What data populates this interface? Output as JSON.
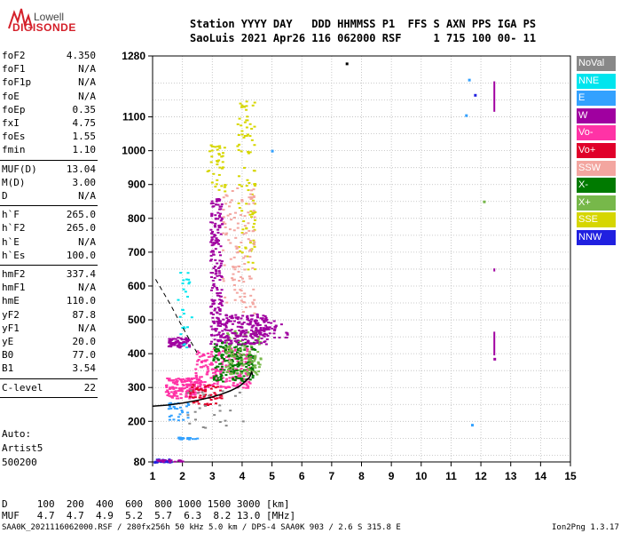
{
  "logo": {
    "line1": "Lowell",
    "line2": "DIGISONDE"
  },
  "header": {
    "line1": "Station YYYY DAY   DDD HHMMSS P1  FFS S AXN PPS IGA PS",
    "line2": "SaoLuis 2021 Apr26 116 062000 RSF     1 715 100 00- 11"
  },
  "params_group1": [
    {
      "name": "foF2",
      "value": "4.350"
    },
    {
      "name": "foF1",
      "value": "N/A"
    },
    {
      "name": "foF1p",
      "value": "N/A"
    },
    {
      "name": "foE",
      "value": "N/A"
    },
    {
      "name": "foEp",
      "value": "0.35"
    },
    {
      "name": "fxI",
      "value": "4.75"
    },
    {
      "name": "foEs",
      "value": "1.55"
    },
    {
      "name": "fmin",
      "value": "1.10"
    }
  ],
  "params_group2": [
    {
      "name": "MUF(D)",
      "value": "13.04"
    },
    {
      "name": "M(D)",
      "value": "3.00"
    },
    {
      "name": "D",
      "value": "N/A"
    }
  ],
  "params_group3": [
    {
      "name": "h`F",
      "value": "265.0"
    },
    {
      "name": "h`F2",
      "value": "265.0"
    },
    {
      "name": "h`E",
      "value": "N/A"
    },
    {
      "name": "h`Es",
      "value": "100.0"
    }
  ],
  "params_group4": [
    {
      "name": "hmF2",
      "value": "337.4"
    },
    {
      "name": "hmF1",
      "value": "N/A"
    },
    {
      "name": "hmE",
      "value": "110.0"
    },
    {
      "name": "yF2",
      "value": "87.8"
    },
    {
      "name": "yF1",
      "value": "N/A"
    },
    {
      "name": "yE",
      "value": "20.0"
    },
    {
      "name": "B0",
      "value": "77.0"
    },
    {
      "name": "B1",
      "value": "3.54"
    }
  ],
  "clevel": {
    "name": "C-level",
    "value": "22"
  },
  "autoscale": {
    "line1": "Auto:",
    "line2": "Artist5",
    "line3": "500200"
  },
  "legend": [
    {
      "label": "NoVal",
      "color": "#888888"
    },
    {
      "label": "NNE",
      "color": "#00e5ee"
    },
    {
      "label": "E",
      "color": "#33a1ff"
    },
    {
      "label": "W",
      "color": "#a000a0"
    },
    {
      "label": "Vo-",
      "color": "#ff33a6"
    },
    {
      "label": "Vo+",
      "color": "#e0002a"
    },
    {
      "label": "SSW",
      "color": "#f3a6a0"
    },
    {
      "label": "X-",
      "color": "#007a00"
    },
    {
      "label": "X+",
      "color": "#77b84a"
    },
    {
      "label": "SSE",
      "color": "#d6d600"
    },
    {
      "label": "NNW",
      "color": "#2020e0"
    }
  ],
  "bottom": {
    "line1": "D     100  200  400  600  800 1000 1500 3000 [km]",
    "line2": "MUF   4.7  4.7  4.9  5.2  5.7  6.3  8.2 13.0 [MHz]"
  },
  "footer": {
    "left": "SAA0K_2021116062000.RSF / 280fx256h 50 kHz 5.0 km / DPS-4 SAA0K 903 / 2.6 S 315.8 E",
    "right": "Ion2Png 1.3.17"
  },
  "chart_data": {
    "type": "scatter",
    "title": "",
    "xlabel": "",
    "ylabel": "",
    "xlim": [
      1,
      15
    ],
    "ylim": [
      80,
      1280
    ],
    "x_ticks": [
      1,
      2,
      3,
      4,
      5,
      6,
      7,
      8,
      9,
      10,
      11,
      12,
      13,
      14,
      15
    ],
    "y_ticks": [
      80,
      200,
      300,
      400,
      500,
      600,
      700,
      800,
      900,
      1000,
      1100,
      1280
    ],
    "grid": true,
    "trace": {
      "name": "",
      "x": [
        1.0,
        1.5,
        2.0,
        2.5,
        3.0,
        3.3,
        3.6,
        3.9,
        4.1,
        4.25,
        4.32,
        4.35
      ],
      "y": [
        245,
        248,
        254,
        262,
        272,
        280,
        290,
        303,
        318,
        330,
        345,
        337.4
      ]
    },
    "dashed_x": [
      1.1,
      1.3,
      1.6,
      1.9,
      2.15,
      2.35,
      2.5
    ],
    "dashed_y": [
      620,
      590,
      545,
      495,
      455,
      425,
      400
    ],
    "echo_regions": [
      {
        "color": "#ff33a6",
        "x": [
          1.4,
          2.6
        ],
        "y": [
          270,
          330
        ],
        "n": 160
      },
      {
        "color": "#ff33a6",
        "x": [
          2.4,
          4.3
        ],
        "y": [
          300,
          420
        ],
        "n": 220
      },
      {
        "color": "#007a00",
        "x": [
          3.0,
          4.4
        ],
        "y": [
          320,
          440
        ],
        "n": 180
      },
      {
        "color": "#77b84a",
        "x": [
          3.4,
          4.6
        ],
        "y": [
          340,
          470
        ],
        "n": 120
      },
      {
        "color": "#a000a0",
        "x": [
          2.9,
          4.8
        ],
        "y": [
          430,
          520
        ],
        "n": 240
      },
      {
        "color": "#a000a0",
        "x": [
          1.5,
          2.2
        ],
        "y": [
          420,
          450
        ],
        "n": 70
      },
      {
        "color": "#a000a0",
        "x": [
          2.9,
          3.3
        ],
        "y": [
          520,
          860
        ],
        "n": 160
      },
      {
        "color": "#d6d600",
        "x": [
          3.8,
          4.4
        ],
        "y": [
          650,
          1150
        ],
        "n": 90
      },
      {
        "color": "#f3a6a0",
        "x": [
          3.3,
          4.4
        ],
        "y": [
          520,
          900
        ],
        "n": 120
      },
      {
        "color": "#d6d600",
        "x": [
          2.8,
          3.4
        ],
        "y": [
          880,
          1020
        ],
        "n": 40
      },
      {
        "color": "#a000a0",
        "x": [
          4.4,
          5.5
        ],
        "y": [
          450,
          500
        ],
        "n": 40
      },
      {
        "color": "#e0002a",
        "x": [
          2.1,
          3.3
        ],
        "y": [
          250,
          310
        ],
        "n": 60
      },
      {
        "color": "#33a1ff",
        "x": [
          1.5,
          2.2
        ],
        "y": [
          200,
          260
        ],
        "n": 30
      },
      {
        "color": "#2020e0",
        "x": [
          1.0,
          1.6
        ],
        "y": [
          80,
          90
        ],
        "n": 25
      },
      {
        "color": "#a000a0",
        "x": [
          1.0,
          2.0
        ],
        "y": [
          82,
          88
        ],
        "n": 20
      },
      {
        "color": "#33a1ff",
        "x": [
          1.8,
          2.5
        ],
        "y": [
          148,
          155
        ],
        "n": 18
      },
      {
        "color": "#00e5ee",
        "x": [
          1.8,
          2.3
        ],
        "y": [
          420,
          650
        ],
        "n": 25
      },
      {
        "color": "#888888",
        "x": [
          2.0,
          4.0
        ],
        "y": [
          180,
          300
        ],
        "n": 25
      }
    ],
    "vertical_bars": [
      {
        "x": 12.45,
        "y": [
          1115,
          1205
        ],
        "color": "#a000a0"
      },
      {
        "x": 12.45,
        "y": [
          395,
          465
        ],
        "color": "#a000a0"
      },
      {
        "x": 12.45,
        "y": [
          643,
          652
        ],
        "color": "#a000a0"
      }
    ],
    "isolated_points": [
      {
        "x": 7.5,
        "y": 1258,
        "color": "#000000"
      },
      {
        "x": 11.6,
        "y": 1210,
        "color": "#33a1ff"
      },
      {
        "x": 11.8,
        "y": 1165,
        "color": "#2020e0"
      },
      {
        "x": 11.5,
        "y": 1105,
        "color": "#33a1ff"
      },
      {
        "x": 12.1,
        "y": 850,
        "color": "#77b84a"
      },
      {
        "x": 11.7,
        "y": 190,
        "color": "#33a1ff"
      },
      {
        "x": 5.0,
        "y": 1000,
        "color": "#33a1ff"
      },
      {
        "x": 12.45,
        "y": 385,
        "color": "#a000a0"
      }
    ]
  }
}
